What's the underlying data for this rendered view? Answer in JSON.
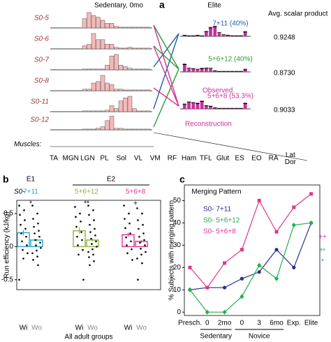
{
  "chart_data": [
    {
      "type": "synergy",
      "panel": "a",
      "title": "Sedentary, 0mo",
      "elite_title": "Elite",
      "score_title": "Avg. scalar product",
      "muscles_label": "Muscles:",
      "muscles": [
        "TA",
        "MGN",
        "LGN",
        "PL",
        "Sol",
        "VL",
        "VM",
        "RF",
        "Ham",
        "TFL",
        "Glut",
        "ES",
        "EO",
        "RA",
        "Lat Dor"
      ],
      "bar_color": "#f5b9b9",
      "sedentary": [
        {
          "name": "S0-5",
          "values": [
            0.6,
            1.0,
            0.8,
            0.7,
            0.5,
            0.3,
            0.3,
            0.1,
            0.05,
            0.05,
            0.05,
            0.05,
            0.05,
            0.05,
            0.05
          ]
        },
        {
          "name": "S0-6",
          "values": [
            0.2,
            0.3,
            1.0,
            0.6,
            0.6,
            0.3,
            0.3,
            0.1,
            0.05,
            0.05,
            0.1,
            0.05,
            0.05,
            0.05,
            0.05
          ]
        },
        {
          "name": "S0-7",
          "values": [
            0.05,
            0.05,
            0.05,
            0.05,
            0.05,
            0.3,
            0.9,
            1.0,
            0.3,
            0.2,
            0.1,
            0.05,
            0.05,
            0.05,
            0.05
          ]
        },
        {
          "name": "S0-8",
          "values": [
            0.1,
            0.1,
            0.5,
            0.6,
            1.0,
            0.5,
            0.4,
            0.1,
            0.1,
            0.05,
            0.05,
            0.05,
            0.05,
            0.05,
            0.05
          ]
        },
        {
          "name": "S0-11",
          "values": [
            0.05,
            0.05,
            0.05,
            0.05,
            0.05,
            0.1,
            0.4,
            0.2,
            0.7,
            0.9,
            1.0,
            0.2,
            0.05,
            0.05,
            0.05
          ]
        },
        {
          "name": "S0-12",
          "values": [
            0.05,
            0.05,
            0.05,
            0.1,
            0.2,
            0.6,
            0.9,
            0.1,
            0.1,
            0.05,
            0.05,
            0.05,
            0.05,
            0.05,
            0.05
          ]
        }
      ],
      "elite": [
        {
          "name": "7+11 (40%)",
          "color": "#1f5fa8",
          "score": "0.9248",
          "sources": [
            2,
            4
          ],
          "observed": [
            0.1,
            0.05,
            0.05,
            0.1,
            0.05,
            0.5,
            0.9,
            1.0,
            0.3,
            0.1,
            0.1,
            0.05,
            0.05,
            0.05,
            0.5
          ],
          "reconstruction": [
            0.1,
            0.05,
            0.05,
            0.1,
            0.05,
            0.45,
            0.8,
            0.9,
            0.35,
            0.15,
            0.1,
            0.05,
            0.05,
            0.05,
            0.4
          ]
        },
        {
          "name": "5+6+12 (40%)",
          "color": "#2a9a3a",
          "score": "0.8730",
          "sources": [
            0,
            1,
            5
          ],
          "observed": [
            0.8,
            0.3,
            0.3,
            0.2,
            0.4,
            0.4,
            0.3,
            0.1,
            0.05,
            0.05,
            0.05,
            0.05,
            0.05,
            0.05,
            0.3
          ],
          "reconstruction": [
            0.7,
            0.35,
            0.3,
            0.25,
            0.3,
            0.35,
            0.35,
            0.1,
            0.05,
            0.05,
            0.05,
            0.05,
            0.05,
            0.05,
            0.2
          ]
        },
        {
          "name": "5+6+8 (53.3%)",
          "color": "#d6338f",
          "score": "0.9033",
          "sources": [
            0,
            1,
            3
          ],
          "observed": [
            0.5,
            0.7,
            0.6,
            0.6,
            0.8,
            0.3,
            0.3,
            0.1,
            0.05,
            0.05,
            0.05,
            0.05,
            0.05,
            0.05,
            0.6
          ],
          "reconstruction": [
            0.45,
            0.65,
            0.6,
            0.5,
            0.7,
            0.3,
            0.25,
            0.1,
            0.05,
            0.05,
            0.05,
            0.05,
            0.05,
            0.05,
            0.5
          ]
        }
      ],
      "observed_label": "Observed",
      "reconstruction_label": "Reconstruction"
    },
    {
      "type": "bar",
      "panel": "b",
      "ylabel": "Run efficiency (kJ/kg)",
      "xlabel": "All adult groups",
      "prefix": "S0-",
      "categories": [
        "Wi",
        "Wo"
      ],
      "ylim": [
        -0.65,
        0.7
      ],
      "yticks": [
        -0.5,
        0,
        0.5
      ],
      "groups": [
        {
          "label": "E1",
          "patterns": [
            {
              "name": "7+11",
              "color": "#2ba5c8",
              "sig": "*",
              "values": [
                0.21,
                0.1
              ],
              "errors": [
                0.04,
                0.02
              ],
              "points": [
                [
                  0.62,
                  0.55,
                  0.48,
                  0.4,
                  0.33,
                  0.27,
                  0.2,
                  0.15,
                  0.08,
                  0.02,
                  -0.05,
                  -0.1,
                  -0.18,
                  -0.5
                ],
                [
                  0.62,
                  0.5,
                  0.42,
                  0.35,
                  0.3,
                  0.24,
                  0.2,
                  0.15,
                  0.1,
                  0.06,
                  0.02,
                  -0.02,
                  -0.06,
                  -0.1,
                  -0.15,
                  -0.2,
                  -0.28
                ]
              ]
            }
          ]
        },
        {
          "label": "E2",
          "patterns": [
            {
              "name": "5+6+12",
              "color": "#8db33a",
              "sig": "**",
              "values": [
                0.24,
                0.1
              ],
              "errors": [
                0.05,
                0.02
              ],
              "points": [
                [
                  0.6,
                  0.5,
                  0.45,
                  0.38,
                  0.3,
                  0.22,
                  0.15,
                  0.1,
                  0.02,
                  -0.05,
                  -0.12,
                  -0.5
                ],
                [
                  0.62,
                  0.55,
                  0.48,
                  0.4,
                  0.33,
                  0.27,
                  0.22,
                  0.17,
                  0.12,
                  0.08,
                  0.04,
                  0.0,
                  -0.04,
                  -0.08,
                  -0.12,
                  -0.16,
                  -0.22,
                  -0.28
                ]
              ]
            },
            {
              "name": "5+6+8",
              "color": "#e0358f",
              "sig": "+",
              "values": [
                0.18,
                0.08
              ],
              "errors": [
                0.03,
                0.02
              ],
              "points": [
                [
                  0.62,
                  0.5,
                  0.42,
                  0.35,
                  0.28,
                  0.2,
                  0.14,
                  0.08,
                  0.02,
                  -0.04,
                  -0.1,
                  -0.2
                ],
                [
                  0.58,
                  0.5,
                  0.4,
                  0.33,
                  0.27,
                  0.2,
                  0.15,
                  0.1,
                  0.06,
                  0.02,
                  -0.03,
                  -0.08,
                  -0.12,
                  -0.18,
                  -0.25,
                  -0.5
                ]
              ]
            }
          ]
        }
      ]
    },
    {
      "type": "line",
      "panel": "c",
      "ylabel": "% Subjects with merging pattern",
      "legend_title": "Merging Pattern",
      "categories": [
        "Presch.",
        "0",
        "2mo",
        "0",
        "3",
        "6mo",
        "Exp.",
        "Elite"
      ],
      "category_groups": [
        {
          "label": "Sedentary",
          "from": 1,
          "to": 2
        },
        {
          "label": "Novice",
          "from": 3,
          "to": 5
        }
      ],
      "ylim": [
        -1.5,
        57
      ],
      "yticks": [
        0,
        10,
        20,
        30,
        40,
        50
      ],
      "series": [
        {
          "name": "S0- 7+11",
          "color": "#2a2f8f",
          "marker": "circle",
          "sig": "*",
          "sig_color": "#1f8fb0",
          "values": [
            10,
            11,
            11,
            15,
            18,
            28,
            20,
            40
          ]
        },
        {
          "name": "S0- 5+6+12",
          "color": "#22b14c",
          "marker": "diamond",
          "sig": "**",
          "sig_color": "#22b14c",
          "values": [
            10,
            0,
            0,
            7,
            21,
            15,
            39,
            40
          ]
        },
        {
          "name": "S0- 5+6+8",
          "color": "#e0358f",
          "marker": "square",
          "sig": "++",
          "sig_color": "#e0358f",
          "values": [
            20,
            11,
            22,
            28,
            50,
            36,
            47,
            53
          ]
        }
      ]
    }
  ]
}
